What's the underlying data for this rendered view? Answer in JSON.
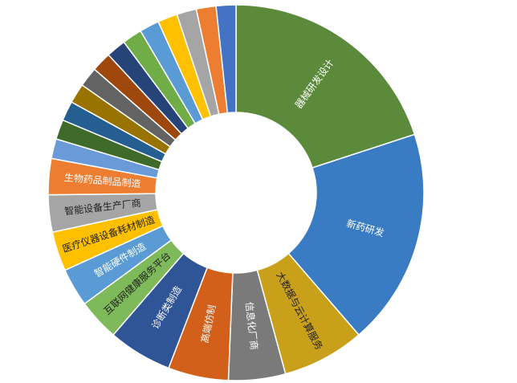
{
  "chart_data": {
    "type": "donut",
    "categories": [
      "器械研发设计",
      "新药研发",
      "大数据与云计算服务",
      "信息化厂商",
      "高端仿制",
      "诊断类制造",
      "互联网健康服务平台",
      "智能硬件制造",
      "医疗仪器设备耗材制造",
      "智能设备生产厂商",
      "生物药品制品制造",
      null,
      null,
      null,
      null,
      null,
      null,
      null,
      null,
      null,
      null,
      null,
      null,
      null
    ],
    "values": [
      20,
      18.7,
      7.1,
      4.9,
      5.2,
      5.5,
      3.6,
      3.3,
      3.4,
      3.2,
      3.1,
      1.7,
      1.7,
      1.7,
      1.7,
      1.7,
      1.7,
      1.7,
      1.7,
      1.7,
      1.7,
      1.7,
      1.7,
      1.7
    ],
    "colors": [
      "#5b8a3a",
      "#3a7cc4",
      "#c9a01a",
      "#7a7a7a",
      "#d2601a",
      "#2f5597",
      "#7fba5a",
      "#5b9bd5",
      "#ffc000",
      "#a5a5a5",
      "#ed7d31",
      "#6a9ad8",
      "#3e6b2a",
      "#255e91",
      "#997300",
      "#636363",
      "#9e480e",
      "#264478",
      "#70ad47",
      "#5b9bd5",
      "#ffc000",
      "#a5a5a5",
      "#ed7d31",
      "#4472c4"
    ]
  }
}
